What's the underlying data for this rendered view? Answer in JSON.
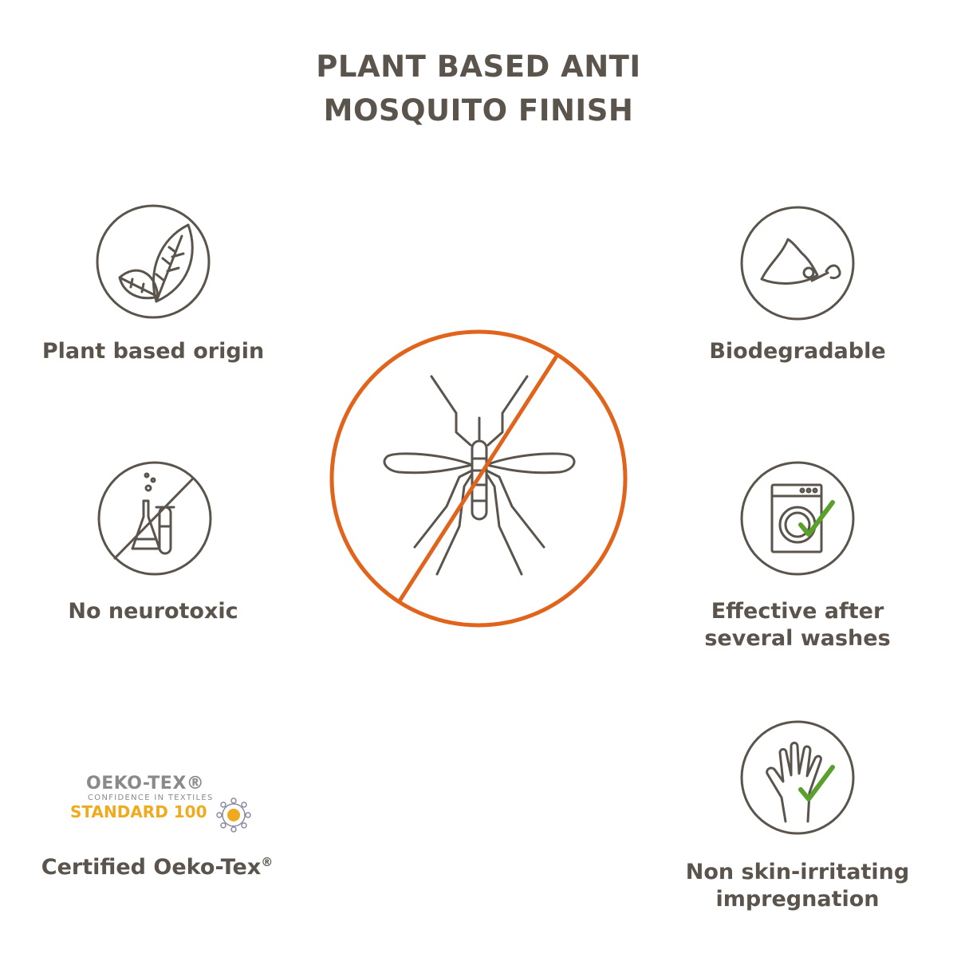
{
  "title": {
    "line1": "PLANT BASED ANTI",
    "line2": "MOSQUITO FINISH"
  },
  "features": [
    {
      "label": "Plant based origin",
      "icon": "leaves-icon"
    },
    {
      "label": "Biodegradable",
      "icon": "compost-icon"
    },
    {
      "label": "No neurotoxic",
      "icon": "no-chemicals-icon"
    },
    {
      "label_line1": "Effective after",
      "label_line2": "several washes",
      "icon": "washing-machine-check-icon"
    },
    {
      "label": "Certified Oeko-Tex",
      "label_mark": "®",
      "icon": "oeko-tex-logo"
    },
    {
      "label_line1": "Non skin-irritating",
      "label_line2": "impregnation",
      "icon": "hand-check-icon"
    }
  ],
  "oeko_logo": {
    "name": "OEKO-TEX®",
    "tagline": "CONFIDENCE IN TEXTILES",
    "standard": "STANDARD 100"
  },
  "center_icon": "no-mosquito-icon",
  "colors": {
    "text": "#5a544c",
    "accent": "#e0641c",
    "check": "#5aa02c",
    "oeko_gold": "#f0aa1e"
  }
}
